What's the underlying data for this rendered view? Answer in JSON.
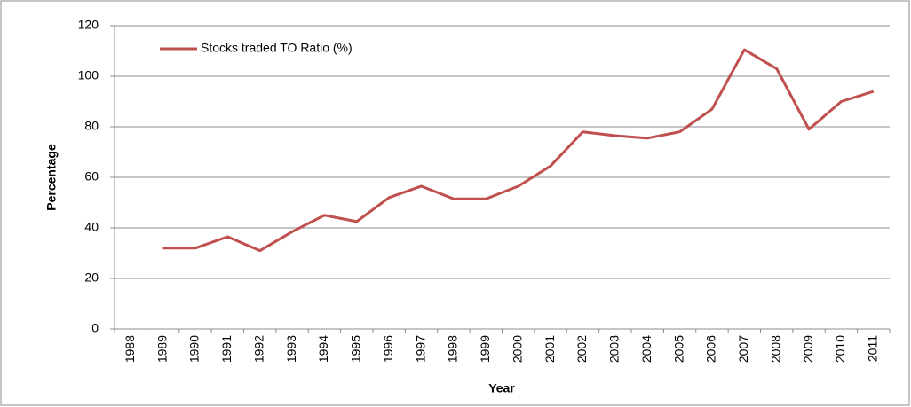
{
  "chart_data": {
    "type": "line",
    "legend": "top-left",
    "categories": [
      "1988",
      "1989",
      "1990",
      "1991",
      "1992",
      "1993",
      "1994",
      "1995",
      "1996",
      "1997",
      "1998",
      "1999",
      "2000",
      "2001",
      "2002",
      "2003",
      "2004",
      "2005",
      "2006",
      "2007",
      "2008",
      "2009",
      "2010",
      "2011"
    ],
    "series": [
      {
        "name": "Stocks traded TO Ratio (%)",
        "color": "#c0504d",
        "values": [
          null,
          32,
          32,
          36.5,
          31,
          38.5,
          45,
          42.5,
          52,
          56.5,
          51.5,
          51.5,
          56.5,
          64.5,
          78,
          76.5,
          75.5,
          78,
          87,
          110.5,
          103,
          79,
          90,
          94
        ]
      }
    ],
    "ylim": [
      0,
      120
    ],
    "yticks": [
      0,
      20,
      40,
      60,
      80,
      100,
      120
    ],
    "grid": true,
    "xlabel": "Year",
    "ylabel": "Percentage"
  }
}
